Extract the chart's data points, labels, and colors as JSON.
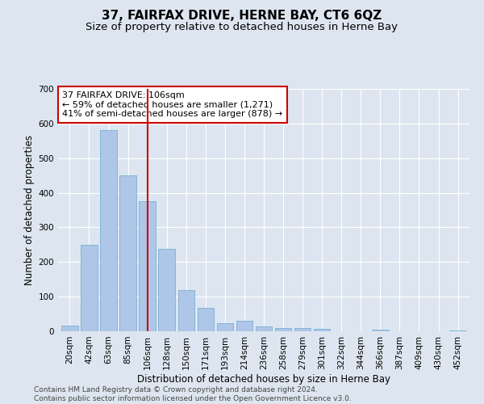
{
  "title": "37, FAIRFAX DRIVE, HERNE BAY, CT6 6QZ",
  "subtitle": "Size of property relative to detached houses in Herne Bay",
  "xlabel": "Distribution of detached houses by size in Herne Bay",
  "ylabel": "Number of detached properties",
  "categories": [
    "20sqm",
    "42sqm",
    "63sqm",
    "85sqm",
    "106sqm",
    "128sqm",
    "150sqm",
    "171sqm",
    "193sqm",
    "214sqm",
    "236sqm",
    "258sqm",
    "279sqm",
    "301sqm",
    "322sqm",
    "344sqm",
    "366sqm",
    "387sqm",
    "409sqm",
    "430sqm",
    "452sqm"
  ],
  "values": [
    17,
    250,
    580,
    450,
    375,
    238,
    120,
    67,
    23,
    31,
    13,
    9,
    10,
    8,
    0,
    0,
    4,
    0,
    0,
    0,
    3
  ],
  "bar_color": "#aec6e8",
  "bar_edge_color": "#7aafd4",
  "vline_x_index": 4,
  "vline_color": "#cc0000",
  "annotation_title": "37 FAIRFAX DRIVE: 106sqm",
  "annotation_line1": "← 59% of detached houses are smaller (1,271)",
  "annotation_line2": "41% of semi-detached houses are larger (878) →",
  "annotation_box_color": "#ffffff",
  "annotation_box_edge": "#cc0000",
  "ylim": [
    0,
    700
  ],
  "yticks": [
    0,
    100,
    200,
    300,
    400,
    500,
    600,
    700
  ],
  "bg_color": "#dde6f0",
  "footer_line1": "Contains HM Land Registry data © Crown copyright and database right 2024.",
  "footer_line2": "Contains public sector information licensed under the Open Government Licence v3.0.",
  "title_fontsize": 11,
  "subtitle_fontsize": 9.5,
  "axis_label_fontsize": 8.5,
  "tick_fontsize": 7.5,
  "annotation_fontsize": 8,
  "footer_fontsize": 6.5
}
